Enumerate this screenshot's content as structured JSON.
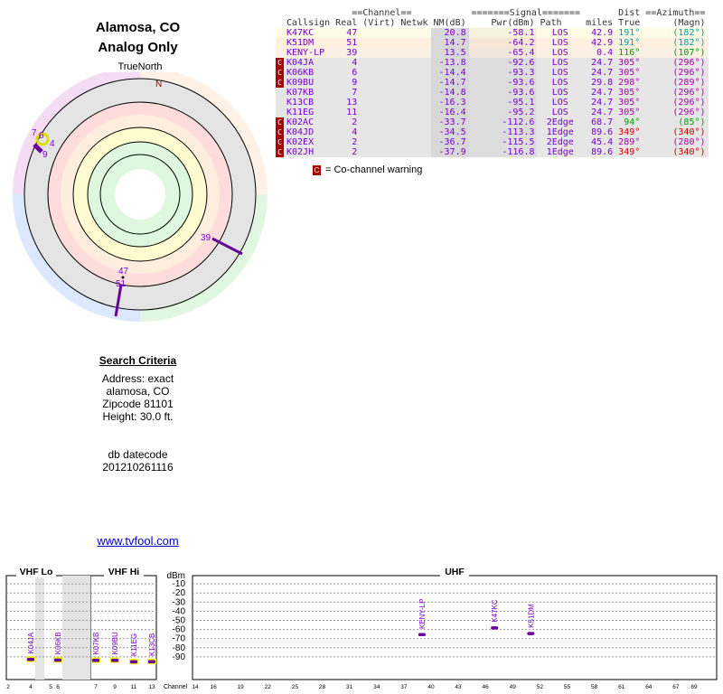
{
  "location": {
    "title": "Alamosa, CO",
    "subtitle": "Analog Only"
  },
  "compass": {
    "true_north_label": "TrueNorth",
    "north_label": "N"
  },
  "polar_labels": [
    "7",
    "6",
    "4",
    "9",
    "39",
    "47",
    "51"
  ],
  "criteria": {
    "heading": "Search Criteria",
    "address": "Address: exact",
    "city": "alamosa, CO",
    "zipcode": "Zipcode 81101",
    "height": "Height: 30.0 ft.",
    "db_label": "db datecode",
    "db_value": "201210261116"
  },
  "link_text": "www.tvfool.com",
  "table": {
    "group_headers": {
      "channel": "Channel",
      "signal": "Signal",
      "dist": "Dist",
      "azimuth": "Azimuth"
    },
    "headers": [
      "Callsign",
      "Real",
      "(Virt)",
      "Netwk",
      "NM(dB)",
      "Pwr(dBm)",
      "Path",
      "miles",
      "True",
      "(Magn)"
    ],
    "rows": [
      {
        "cc": false,
        "callsign": "K47KC",
        "real": "47",
        "virt": "",
        "netwk": "",
        "nm": "20.8",
        "pwr": "-58.1",
        "path": "LOS",
        "miles": "42.9",
        "true": "191°",
        "magn": "(182°)",
        "bg": "#fffbe6",
        "azcolor": "#00a0a0"
      },
      {
        "cc": false,
        "callsign": "K51DM",
        "real": "51",
        "virt": "",
        "netwk": "",
        "nm": "14.7",
        "pwr": "-64.2",
        "path": "LOS",
        "miles": "42.9",
        "true": "191°",
        "magn": "(182°)",
        "bg": "#fff0e0",
        "azcolor": "#00a0a0"
      },
      {
        "cc": false,
        "callsign": "KENY-LP",
        "real": "39",
        "virt": "",
        "netwk": "",
        "nm": "13.5",
        "pwr": "-65.4",
        "path": "LOS",
        "miles": "0.4",
        "true": "116°",
        "magn": "(107°)",
        "bg": "#fbf0e4",
        "azcolor": "#00a000"
      },
      {
        "cc": true,
        "callsign": "K04JA",
        "real": "4",
        "virt": "",
        "netwk": "",
        "nm": "-13.8",
        "pwr": "-92.6",
        "path": "LOS",
        "miles": "24.7",
        "true": "305°",
        "magn": "(296°)",
        "bg": "#e6e6e6",
        "azcolor": "#aa00aa"
      },
      {
        "cc": true,
        "callsign": "K06KB",
        "real": "6",
        "virt": "",
        "netwk": "",
        "nm": "-14.4",
        "pwr": "-93.3",
        "path": "LOS",
        "miles": "24.7",
        "true": "305°",
        "magn": "(296°)",
        "bg": "#e6e6e6",
        "azcolor": "#aa00aa"
      },
      {
        "cc": true,
        "callsign": "K09BU",
        "real": "9",
        "virt": "",
        "netwk": "",
        "nm": "-14.7",
        "pwr": "-93.6",
        "path": "LOS",
        "miles": "29.8",
        "true": "298°",
        "magn": "(289°)",
        "bg": "#e6e6e6",
        "azcolor": "#aa00aa"
      },
      {
        "cc": false,
        "callsign": "K07KB",
        "real": "7",
        "virt": "",
        "netwk": "",
        "nm": "-14.8",
        "pwr": "-93.6",
        "path": "LOS",
        "miles": "24.7",
        "true": "305°",
        "magn": "(296°)",
        "bg": "#e6e6e6",
        "azcolor": "#aa00aa"
      },
      {
        "cc": false,
        "callsign": "K13CB",
        "real": "13",
        "virt": "",
        "netwk": "",
        "nm": "-16.3",
        "pwr": "-95.1",
        "path": "LOS",
        "miles": "24.7",
        "true": "305°",
        "magn": "(296°)",
        "bg": "#e6e6e6",
        "azcolor": "#aa00aa"
      },
      {
        "cc": false,
        "callsign": "K11EG",
        "real": "11",
        "virt": "",
        "netwk": "",
        "nm": "-16.4",
        "pwr": "-95.2",
        "path": "LOS",
        "miles": "24.7",
        "true": "305°",
        "magn": "(296°)",
        "bg": "#e6e6e6",
        "azcolor": "#aa00aa"
      },
      {
        "cc": true,
        "callsign": "K02AC",
        "real": "2",
        "virt": "",
        "netwk": "",
        "nm": "-33.7",
        "pwr": "-112.6",
        "path": "2Edge",
        "miles": "68.7",
        "true": "94°",
        "magn": "(85°)",
        "bg": "#e6e6e6",
        "azcolor": "#00a000"
      },
      {
        "cc": true,
        "callsign": "K04JD",
        "real": "4",
        "virt": "",
        "netwk": "",
        "nm": "-34.5",
        "pwr": "-113.3",
        "path": "1Edge",
        "miles": "89.6",
        "true": "349°",
        "magn": "(340°)",
        "bg": "#e6e6e6",
        "azcolor": "#cc0000"
      },
      {
        "cc": true,
        "callsign": "K02EX",
        "real": "2",
        "virt": "",
        "netwk": "",
        "nm": "-36.7",
        "pwr": "-115.5",
        "path": "2Edge",
        "miles": "45.4",
        "true": "289°",
        "magn": "(280°)",
        "bg": "#e6e6e6",
        "azcolor": "#aa00aa"
      },
      {
        "cc": true,
        "callsign": "K02JH",
        "real": "2",
        "virt": "",
        "netwk": "",
        "nm": "-37.9",
        "pwr": "-116.8",
        "path": "1Edge",
        "miles": "89.6",
        "true": "349°",
        "magn": "(340°)",
        "bg": "#e6e6e6",
        "azcolor": "#cc0000"
      }
    ]
  },
  "legend": {
    "badge": "C",
    "text": "= Co-channel warning"
  },
  "spectrum": {
    "bands": [
      "VHF Lo",
      "VHF Hi",
      "UHF"
    ],
    "y_unit": "dBm",
    "y_ticks": [
      "-10",
      "-20",
      "-30",
      "-40",
      "-50",
      "-60",
      "-70",
      "-80",
      "-90"
    ],
    "channel_label": "Channel",
    "vhflo_ticks": [
      "2",
      "4",
      "5",
      "6"
    ],
    "vhfhi_ticks": [
      "7",
      "9",
      "11",
      "13"
    ],
    "uhf_ticks": [
      "14",
      "16",
      "19",
      "22",
      "25",
      "28",
      "31",
      "34",
      "37",
      "40",
      "43",
      "46",
      "49",
      "52",
      "55",
      "58",
      "61",
      "64",
      "67",
      "69"
    ],
    "stations": [
      {
        "callsign": "K04JA",
        "channel": 4,
        "dbm": -92.6,
        "band": "lo"
      },
      {
        "callsign": "K06KB",
        "channel": 6,
        "dbm": -93.3,
        "band": "lo"
      },
      {
        "callsign": "K07KB",
        "channel": 7,
        "dbm": -93.6,
        "band": "hi"
      },
      {
        "callsign": "K09BU",
        "channel": 9,
        "dbm": -93.6,
        "band": "hi"
      },
      {
        "callsign": "K11EG",
        "channel": 11,
        "dbm": -95.2,
        "band": "hi"
      },
      {
        "callsign": "K13CB",
        "channel": 13,
        "dbm": -95.1,
        "band": "hi"
      },
      {
        "callsign": "KENY-LP",
        "channel": 39,
        "dbm": -65.4,
        "band": "uhf"
      },
      {
        "callsign": "K47KC",
        "channel": 47,
        "dbm": -58.1,
        "band": "uhf"
      },
      {
        "callsign": "K51DM",
        "channel": 51,
        "dbm": -64.2,
        "band": "uhf"
      }
    ]
  }
}
